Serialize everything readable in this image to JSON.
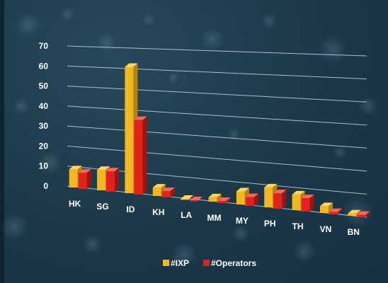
{
  "chart_data": {
    "type": "bar",
    "title": "",
    "xlabel": "",
    "ylabel": "",
    "ylim": [
      0,
      70
    ],
    "yticks": [
      0,
      10,
      20,
      30,
      40,
      50,
      60,
      70
    ],
    "grid": true,
    "legend_position": "bottom-center",
    "categories": [
      "HK",
      "SG",
      "ID",
      "KH",
      "LA",
      "MM",
      "MY",
      "PH",
      "TH",
      "VN",
      "BN"
    ],
    "series": [
      {
        "name": "#IXP",
        "values": [
          9,
          10,
          61,
          4,
          0,
          2,
          6,
          9,
          7,
          3,
          1
        ]
      },
      {
        "name": "#Operators",
        "values": [
          8,
          10,
          36,
          3,
          0,
          1,
          4,
          7,
          6,
          1,
          1
        ]
      }
    ],
    "colors": {
      "ixp_front": "#f2b81f",
      "ixp_side": "#b9820d",
      "ixp_top": "#f8d56e",
      "op_front": "#e2231d",
      "op_side": "#9e1410",
      "op_top": "#f06a5f",
      "grid": "#c9d4dc",
      "text": "#ffffff",
      "bg": "#1f3c4f"
    }
  }
}
